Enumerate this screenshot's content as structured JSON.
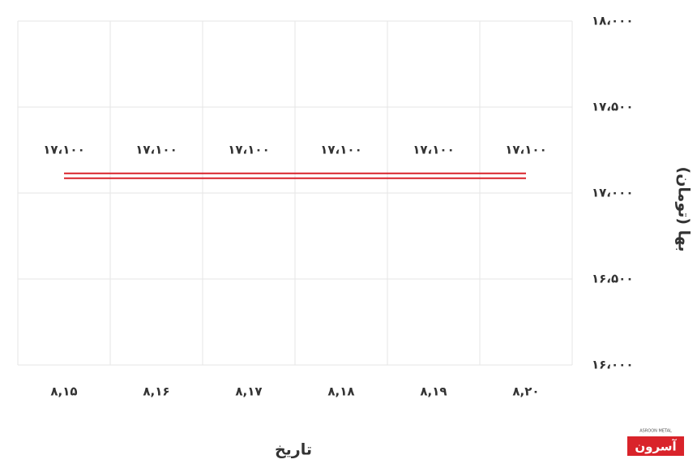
{
  "chart_data": {
    "type": "line",
    "x_label": "تاریخ",
    "y_label": "بها (تومان)",
    "categories": [
      "۸,۱۵",
      "۸,۱۶",
      "۸,۱۷",
      "۸,۱۸",
      "۸,۱۹",
      "۸,۲۰"
    ],
    "series": [
      {
        "name": "بها",
        "color": "#d9232a",
        "values": [
          17100,
          17100,
          17100,
          17100,
          17100,
          17100
        ],
        "value_labels": [
          "۱۷،۱۰۰",
          "۱۷،۱۰۰",
          "۱۷،۱۰۰",
          "۱۷،۱۰۰",
          "۱۷،۱۰۰",
          "۱۷،۱۰۰"
        ]
      }
    ],
    "ylim": [
      16000,
      18000
    ],
    "yticks": [
      {
        "value": 16000,
        "label": "۱۶،۰۰۰"
      },
      {
        "value": 16500,
        "label": "۱۶،۵۰۰"
      },
      {
        "value": 17000,
        "label": "۱۷،۰۰۰"
      },
      {
        "value": 17500,
        "label": "۱۷،۵۰۰"
      },
      {
        "value": 18000,
        "label": "۱۸،۰۰۰"
      }
    ],
    "grid": true
  },
  "logo": {
    "name": "آسرون",
    "subtitle": "ASROON METAL"
  }
}
